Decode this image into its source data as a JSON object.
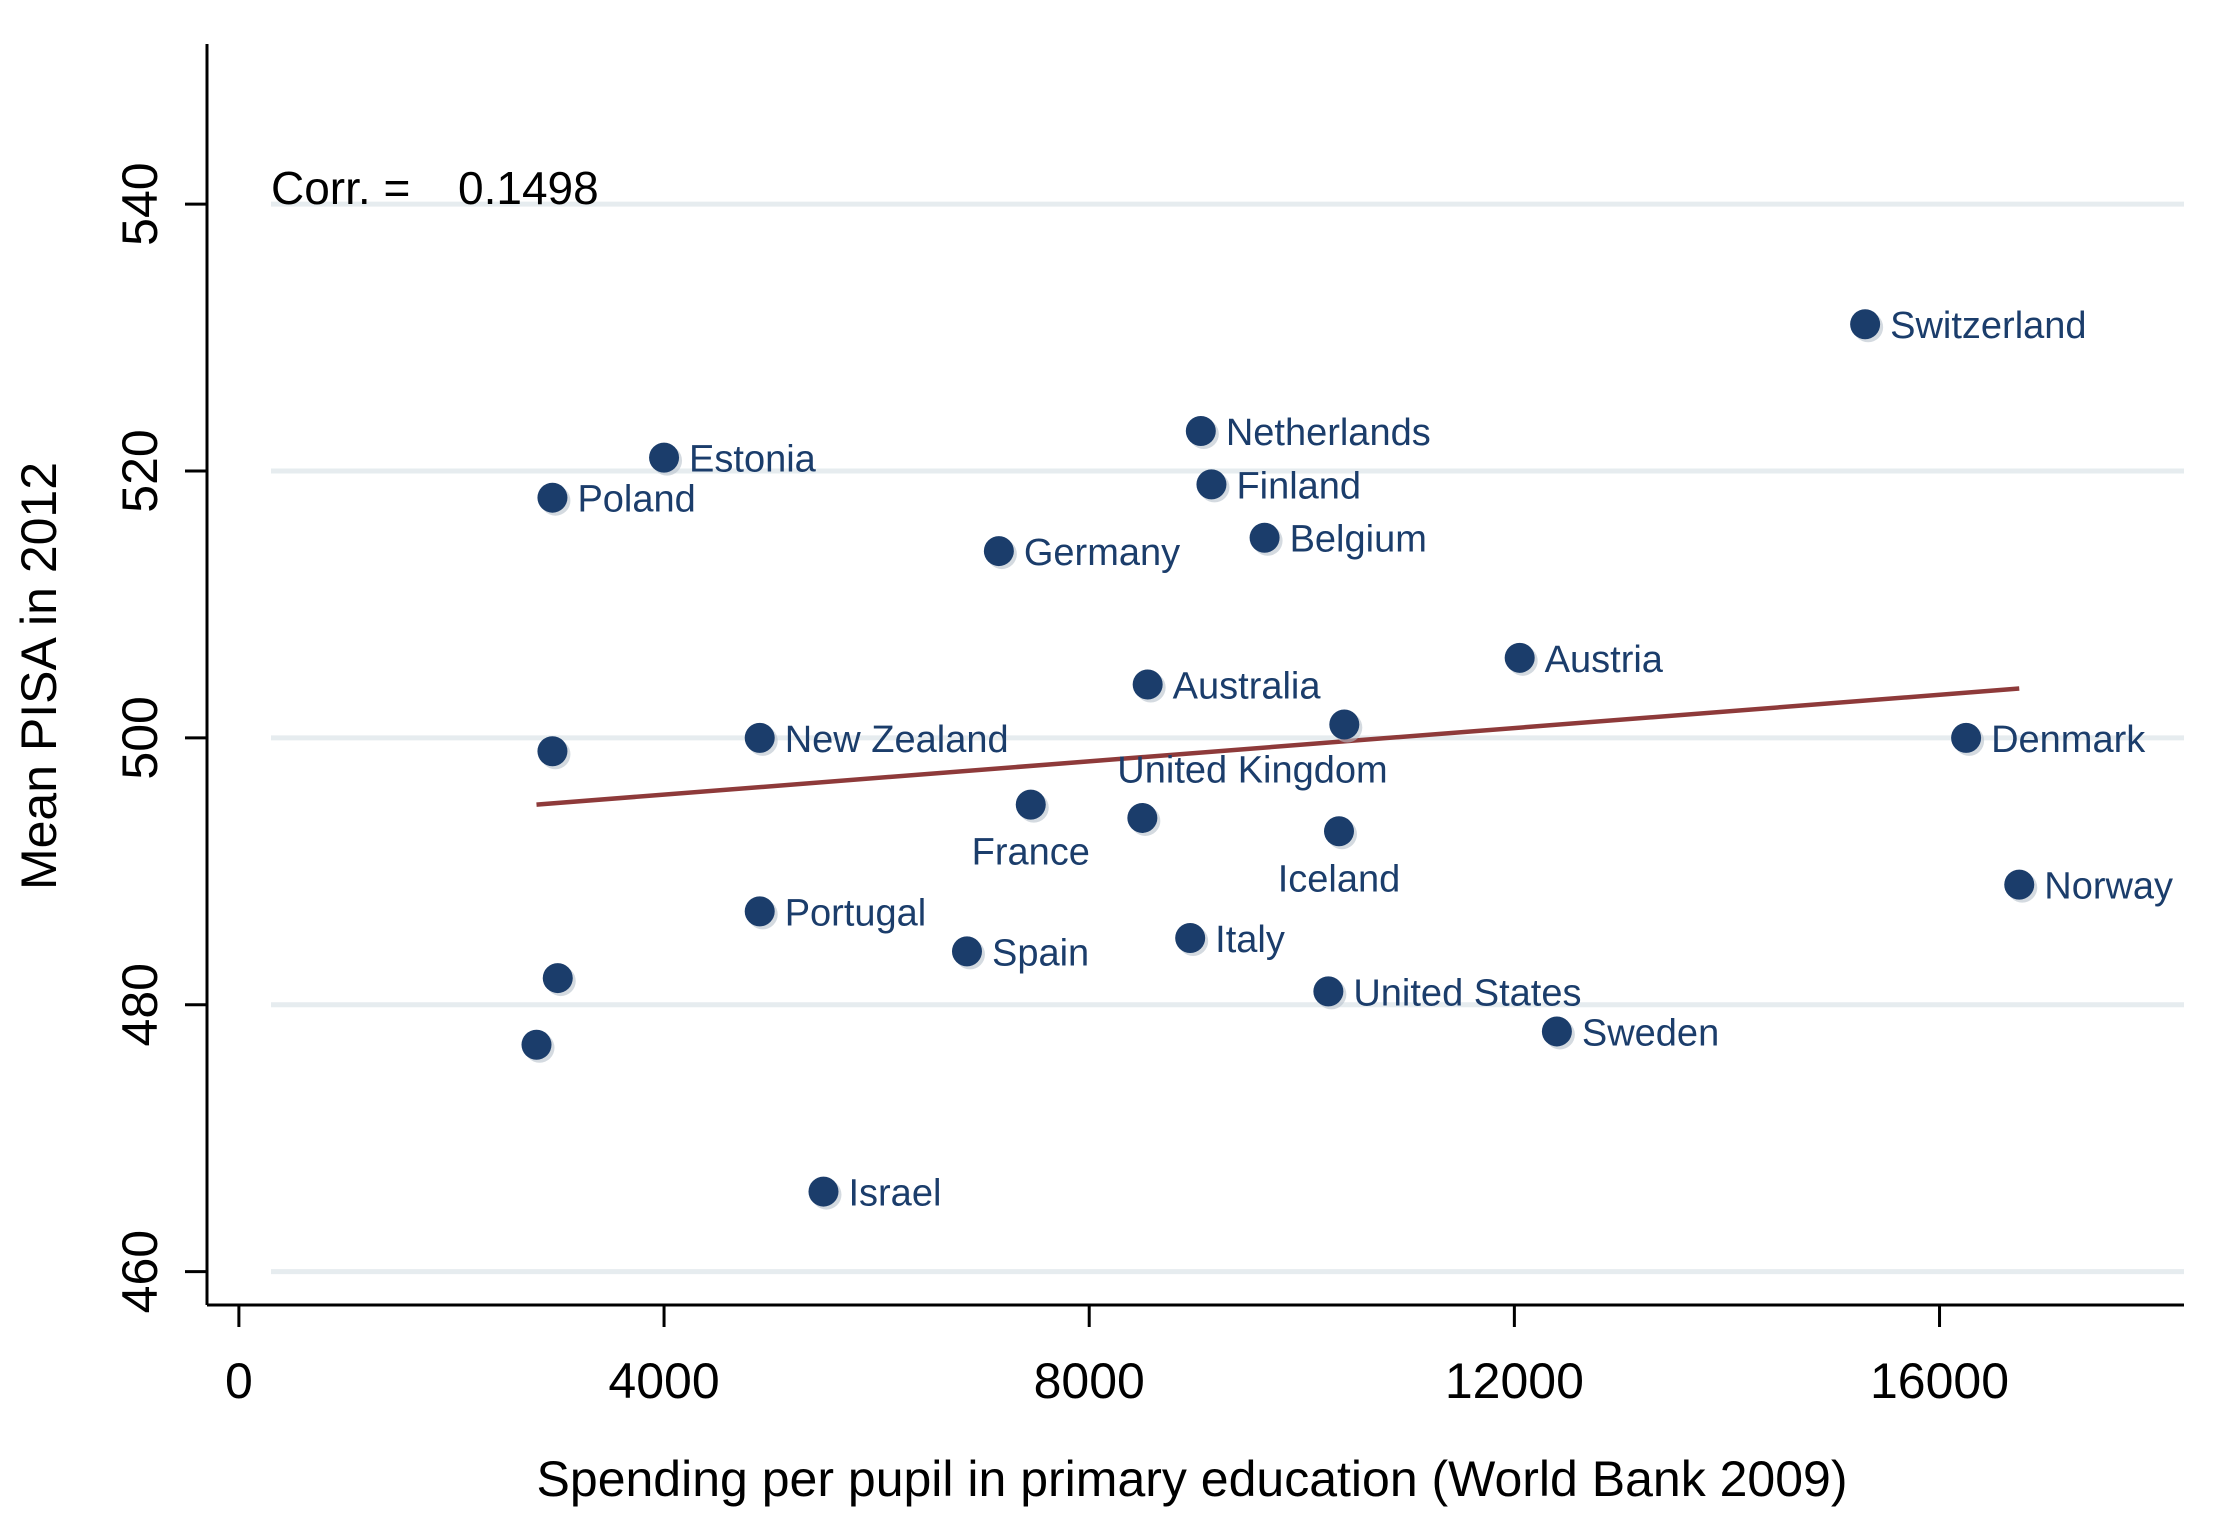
{
  "chart_data": {
    "type": "scatter",
    "xlabel": "Spending per pupil in primary education (World Bank 2009)",
    "ylabel": "Mean PISA in 2012",
    "xlim": [
      -300,
      18300
    ],
    "ylim": [
      457.5,
      552
    ],
    "x_ticks": [
      0,
      4000,
      8000,
      12000,
      16000
    ],
    "y_ticks": [
      460,
      480,
      500,
      520,
      540
    ],
    "grid": "horizontal",
    "annotation": {
      "label": "Corr. =",
      "value": "0.1498"
    },
    "fit_line": {
      "x": [
        2800,
        16750
      ],
      "y": [
        495.0,
        503.7
      ]
    },
    "colors": {
      "points": "#1b3d6b",
      "labels": "#1b3d6b",
      "fit_line": "#8e3a3a",
      "grid": "#e6ecef",
      "axis": "#000000"
    },
    "points": [
      {
        "label": "Switzerland",
        "x": 15300,
        "y": 531,
        "label_pos": "right"
      },
      {
        "label": "Netherlands",
        "x": 9050,
        "y": 523,
        "label_pos": "right"
      },
      {
        "label": "Estonia",
        "x": 4000,
        "y": 521,
        "label_pos": "right"
      },
      {
        "label": "Finland",
        "x": 9150,
        "y": 519,
        "label_pos": "right"
      },
      {
        "label": "Poland",
        "x": 2950,
        "y": 518,
        "label_pos": "right"
      },
      {
        "label": "Belgium",
        "x": 9650,
        "y": 515,
        "label_pos": "right"
      },
      {
        "label": "Germany",
        "x": 7150,
        "y": 514,
        "label_pos": "right"
      },
      {
        "label": "Austria",
        "x": 12050,
        "y": 506,
        "label_pos": "right"
      },
      {
        "label": "Australia",
        "x": 8550,
        "y": 504,
        "label_pos": "right"
      },
      {
        "label": "United Kingdom",
        "x": 10400,
        "y": 501,
        "label_pos": "below-left"
      },
      {
        "label": "New Zealand",
        "x": 4900,
        "y": 500,
        "label_pos": "right"
      },
      {
        "label": "Denmark",
        "x": 16250,
        "y": 500,
        "label_pos": "right"
      },
      {
        "label": "",
        "x": 2950,
        "y": 499,
        "label_pos": "right"
      },
      {
        "label": "France",
        "x": 7450,
        "y": 495,
        "label_pos": "below"
      },
      {
        "label": "",
        "x": 8500,
        "y": 494,
        "label_pos": "right"
      },
      {
        "label": "Iceland",
        "x": 10350,
        "y": 493,
        "label_pos": "below"
      },
      {
        "label": "Norway",
        "x": 16750,
        "y": 489,
        "label_pos": "right"
      },
      {
        "label": "Portugal",
        "x": 4900,
        "y": 487,
        "label_pos": "right"
      },
      {
        "label": "Italy",
        "x": 8950,
        "y": 485,
        "label_pos": "right"
      },
      {
        "label": "Spain",
        "x": 6850,
        "y": 484,
        "label_pos": "right"
      },
      {
        "label": "",
        "x": 3000,
        "y": 482,
        "label_pos": "right"
      },
      {
        "label": "United States",
        "x": 10250,
        "y": 481,
        "label_pos": "right"
      },
      {
        "label": "Sweden",
        "x": 12400,
        "y": 478,
        "label_pos": "right"
      },
      {
        "label": "",
        "x": 2800,
        "y": 477,
        "label_pos": "right"
      },
      {
        "label": "Israel",
        "x": 5500,
        "y": 466,
        "label_pos": "right"
      }
    ]
  }
}
